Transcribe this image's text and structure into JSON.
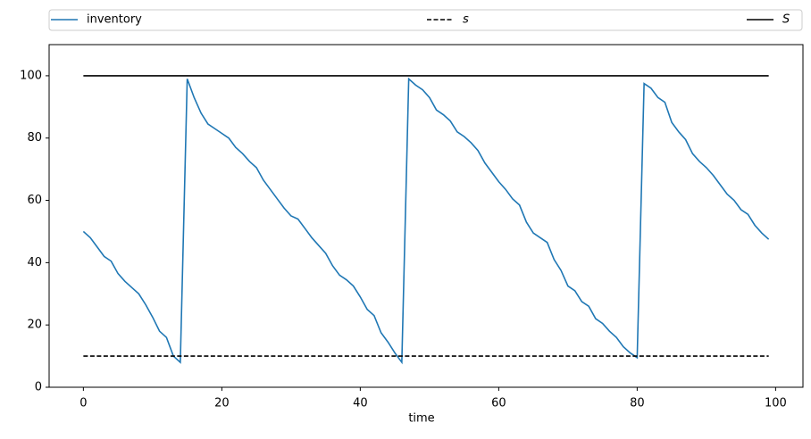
{
  "chart_data": {
    "type": "line",
    "xlabel": "time",
    "x": [
      0,
      1,
      2,
      3,
      4,
      5,
      6,
      7,
      8,
      9,
      10,
      11,
      12,
      13,
      14,
      15,
      16,
      17,
      18,
      19,
      20,
      21,
      22,
      23,
      24,
      25,
      26,
      27,
      28,
      29,
      30,
      31,
      32,
      33,
      34,
      35,
      36,
      37,
      38,
      39,
      40,
      41,
      42,
      43,
      44,
      45,
      46,
      47,
      48,
      49,
      50,
      51,
      52,
      53,
      54,
      55,
      56,
      57,
      58,
      59,
      60,
      61,
      62,
      63,
      64,
      65,
      66,
      67,
      68,
      69,
      70,
      71,
      72,
      73,
      74,
      75,
      76,
      77,
      78,
      79,
      80,
      81,
      82,
      83,
      84,
      85,
      86,
      87,
      88,
      89,
      90,
      91,
      92,
      93,
      94,
      95,
      96,
      97,
      98,
      99
    ],
    "series": [
      {
        "name": "inventory",
        "color": "#1f77b4",
        "style": "solid",
        "values": [
          50,
          48,
          45,
          42,
          40.5,
          36.5,
          34,
          32,
          30,
          26.5,
          22.5,
          18,
          16,
          10,
          8,
          99,
          93,
          88,
          84.5,
          83,
          81.5,
          80,
          77,
          75,
          72.5,
          70.5,
          66.5,
          63.5,
          60.5,
          57.5,
          55,
          54,
          51,
          48,
          45.5,
          43,
          39,
          36,
          34.5,
          32.5,
          29,
          25,
          23,
          17.5,
          14.5,
          11,
          8,
          99,
          97,
          95.5,
          93,
          89,
          87.5,
          85.5,
          82,
          80.5,
          78.5,
          76,
          72,
          69,
          66,
          63.5,
          60.5,
          58.5,
          53,
          49.5,
          48,
          46.5,
          41,
          37.5,
          32.5,
          31,
          27.5,
          26,
          22,
          20.5,
          18,
          16,
          13,
          11,
          9.5,
          97.5,
          96,
          93,
          91.5,
          85,
          82,
          79.5,
          75,
          72.5,
          70.5,
          68,
          65,
          62,
          60,
          57,
          55.5,
          52,
          49.5,
          47.5
        ]
      },
      {
        "name": "s",
        "color": "#000000",
        "style": "dashed",
        "x": [
          0,
          99
        ],
        "values": [
          10,
          10
        ]
      },
      {
        "name": "S",
        "color": "#000000",
        "style": "solid",
        "x": [
          0,
          99
        ],
        "values": [
          100,
          100
        ]
      }
    ],
    "xlim": [
      -4.95,
      103.95
    ],
    "xticks": [
      0,
      20,
      40,
      60,
      80,
      100
    ],
    "ylim": [
      0,
      110
    ],
    "yticks": [
      0,
      20,
      40,
      60,
      80,
      100
    ],
    "legend": "top-expand"
  }
}
